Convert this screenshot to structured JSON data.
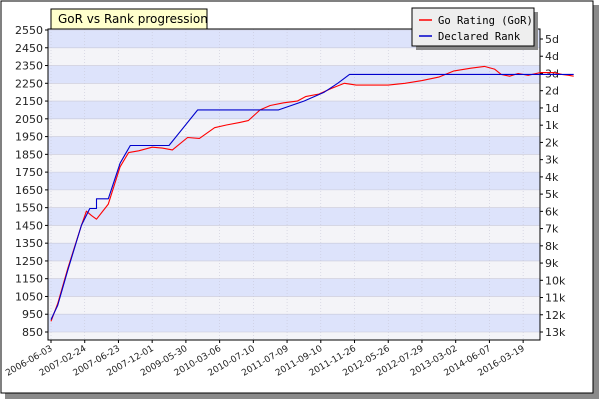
{
  "chart_data": {
    "type": "line",
    "title": "GoR vs Rank progression",
    "grid": true,
    "legend_position": "top-right",
    "ylim": [
      850,
      2550
    ],
    "yticks": [
      850,
      950,
      1050,
      1150,
      1250,
      1350,
      1450,
      1550,
      1650,
      1750,
      1850,
      1950,
      2050,
      2150,
      2250,
      2350,
      2450,
      2550
    ],
    "y2ticks": [
      "13k",
      "12k",
      "11k",
      "10k",
      "9k",
      "8k",
      "7k",
      "6k",
      "5k",
      "4k",
      "3k",
      "2k",
      "1k",
      "1d",
      "2d",
      "3d",
      "4d",
      "5d"
    ],
    "x_dates": [
      "2006-06-03",
      "2007-02-24",
      "2007-06-23",
      "2007-12-01",
      "2009-05-30",
      "2010-03-06",
      "2010-07-10",
      "2011-07-09",
      "2011-09-10",
      "2011-11-26",
      "2012-05-26",
      "2012-07-29",
      "2013-03-02",
      "2014-06-07",
      "2016-03-19"
    ],
    "series": [
      {
        "name": "Go Rating (GoR)",
        "color": "#ff0000",
        "values": [
          [
            0,
            910
          ],
          [
            0.2,
            1010
          ],
          [
            0.5,
            1210
          ],
          [
            0.9,
            1450
          ],
          [
            1.05,
            1530
          ],
          [
            1.2,
            1505
          ],
          [
            1.35,
            1485
          ],
          [
            1.7,
            1570
          ],
          [
            2.05,
            1780
          ],
          [
            2.3,
            1860
          ],
          [
            2.6,
            1870
          ],
          [
            3.0,
            1890
          ],
          [
            3.3,
            1885
          ],
          [
            3.6,
            1875
          ],
          [
            4.05,
            1945
          ],
          [
            4.4,
            1940
          ],
          [
            4.85,
            2000
          ],
          [
            5.2,
            2015
          ],
          [
            5.6,
            2030
          ],
          [
            5.85,
            2040
          ],
          [
            6.2,
            2100
          ],
          [
            6.5,
            2125
          ],
          [
            6.9,
            2140
          ],
          [
            7.3,
            2150
          ],
          [
            7.55,
            2175
          ],
          [
            7.95,
            2190
          ],
          [
            8.3,
            2220
          ],
          [
            8.7,
            2250
          ],
          [
            9.05,
            2240
          ],
          [
            9.5,
            2240
          ],
          [
            10.0,
            2240
          ],
          [
            10.5,
            2250
          ],
          [
            11.0,
            2265
          ],
          [
            11.5,
            2285
          ],
          [
            11.95,
            2320
          ],
          [
            12.45,
            2335
          ],
          [
            12.85,
            2345
          ],
          [
            13.15,
            2330
          ],
          [
            13.35,
            2300
          ],
          [
            13.6,
            2290
          ],
          [
            13.85,
            2305
          ],
          [
            14.15,
            2295
          ],
          [
            14.5,
            2310
          ],
          [
            14.9,
            2310
          ],
          [
            15.15,
            2300
          ],
          [
            15.35,
            2295
          ],
          [
            15.5,
            2290
          ]
        ]
      },
      {
        "name": "Declared Rank",
        "color": "#0000cc",
        "values": [
          [
            0,
            920
          ],
          [
            0.2,
            1000
          ],
          [
            0.5,
            1200
          ],
          [
            0.9,
            1450
          ],
          [
            1.15,
            1545
          ],
          [
            1.35,
            1545
          ],
          [
            1.35,
            1600
          ],
          [
            1.7,
            1600
          ],
          [
            2.05,
            1800
          ],
          [
            2.05,
            1800
          ],
          [
            2.35,
            1900
          ],
          [
            3.5,
            1900
          ],
          [
            4.35,
            2100
          ],
          [
            6.75,
            2100
          ],
          [
            7.5,
            2150
          ],
          [
            8.1,
            2200
          ],
          [
            8.5,
            2250
          ],
          [
            8.5,
            2250
          ],
          [
            8.85,
            2300
          ],
          [
            15.5,
            2300
          ]
        ]
      }
    ]
  }
}
